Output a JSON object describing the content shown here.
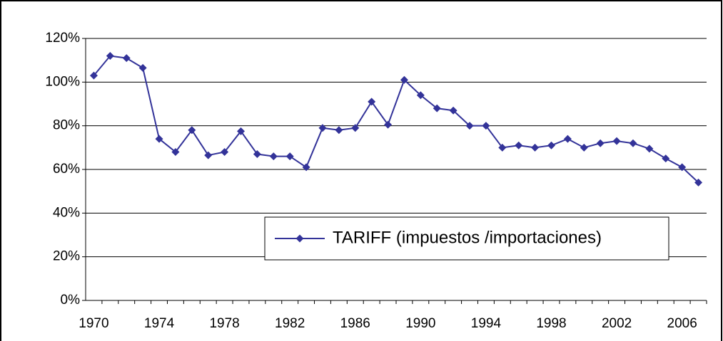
{
  "chart_data": {
    "type": "line",
    "x": [
      1970,
      1971,
      1972,
      1973,
      1974,
      1975,
      1976,
      1977,
      1978,
      1979,
      1980,
      1981,
      1982,
      1983,
      1984,
      1985,
      1986,
      1987,
      1988,
      1989,
      1990,
      1991,
      1992,
      1993,
      1994,
      1995,
      1996,
      1997,
      1998,
      1999,
      2000,
      2001,
      2002,
      2003,
      2004,
      2005,
      2006,
      2007
    ],
    "series": [
      {
        "name": "TARIFF (impuestos /importaciones)",
        "color": "#333399",
        "values": [
          103,
          112,
          111,
          106.5,
          74,
          68,
          78,
          66.5,
          68,
          77.5,
          67,
          66,
          66,
          61,
          79,
          78,
          79,
          91,
          80.5,
          101,
          94,
          88,
          87,
          80,
          80,
          70,
          71,
          70,
          71,
          74,
          70,
          72,
          73,
          72,
          69.5,
          65,
          61,
          54
        ]
      }
    ],
    "xlim": [
      1969.5,
      2007.5
    ],
    "xticks": [
      1970,
      1974,
      1978,
      1982,
      1986,
      1990,
      1994,
      1998,
      2002,
      2006
    ],
    "ylim": [
      0,
      120
    ],
    "yticks": [
      {
        "value": 0,
        "label": "0%"
      },
      {
        "value": 20,
        "label": "20%"
      },
      {
        "value": 40,
        "label": "40%"
      },
      {
        "value": 60,
        "label": "60%"
      },
      {
        "value": 80,
        "label": "80%"
      },
      {
        "value": 100,
        "label": "100%"
      },
      {
        "value": 120,
        "label": "120%"
      }
    ],
    "grid": true
  }
}
